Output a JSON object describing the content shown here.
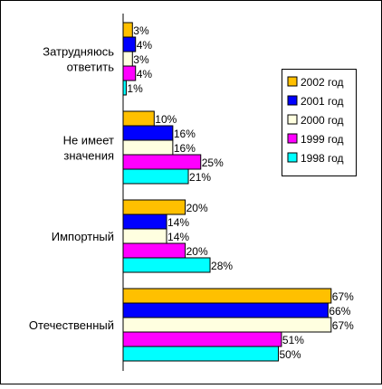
{
  "chart_data": {
    "type": "bar",
    "orientation": "horizontal",
    "categories": [
      [
        "Затрудняюсь",
        "ответить"
      ],
      [
        "Не имеет",
        "значения"
      ],
      [
        "Импортный"
      ],
      [
        "Отечественный"
      ]
    ],
    "series": [
      {
        "name": "2002 год",
        "color": "#FFC000",
        "values": [
          3,
          10,
          20,
          67
        ]
      },
      {
        "name": "2001 год",
        "color": "#0000FF",
        "values": [
          4,
          16,
          14,
          66
        ]
      },
      {
        "name": "2000 год",
        "color": "#FFFFE0",
        "values": [
          3,
          16,
          14,
          67
        ]
      },
      {
        "name": "1999 год",
        "color": "#FF00FF",
        "values": [
          4,
          25,
          20,
          51
        ]
      },
      {
        "name": "1998 год",
        "color": "#00FFFF",
        "values": [
          1,
          21,
          28,
          50
        ]
      }
    ],
    "value_suffix": "%",
    "xlim": [
      0,
      70
    ],
    "grid": false,
    "legend_position": "right"
  }
}
